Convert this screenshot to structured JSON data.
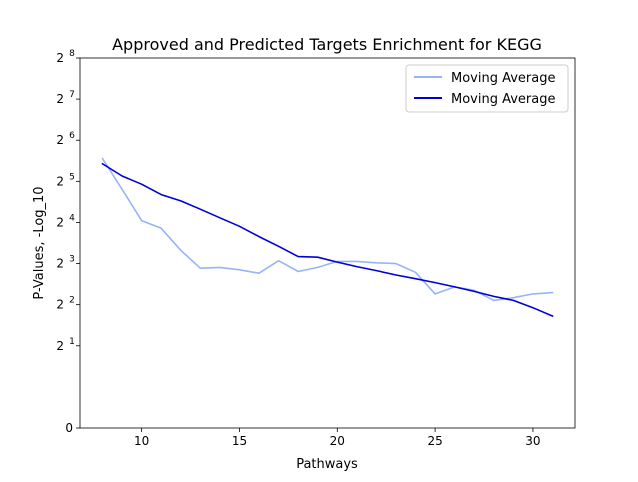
{
  "chart_data": {
    "type": "line",
    "title": "Approved and Predicted Targets Enrichment for KEGG",
    "xlabel": "Pathways",
    "ylabel": "P-Values, -Log_10",
    "xlim": [
      6.85,
      32.15
    ],
    "ylim_log2": [
      -1,
      8
    ],
    "y_scale": "log2",
    "x_ticks": [
      10,
      15,
      20,
      25,
      30
    ],
    "y_ticks": [
      {
        "base": "0",
        "exp": "",
        "log2": -1
      },
      {
        "base": "2",
        "exp": "1",
        "log2": 1
      },
      {
        "base": "2",
        "exp": "2",
        "log2": 2
      },
      {
        "base": "2",
        "exp": "3",
        "log2": 3
      },
      {
        "base": "2",
        "exp": "4",
        "log2": 4
      },
      {
        "base": "2",
        "exp": "5",
        "log2": 5
      },
      {
        "base": "2",
        "exp": "6",
        "log2": 6
      },
      {
        "base": "2",
        "exp": "7",
        "log2": 7
      },
      {
        "base": "2",
        "exp": "8",
        "log2": 8
      }
    ],
    "legend_position": "top-right",
    "grid": false,
    "series": [
      {
        "name": "Moving Average",
        "color": "#97b4f7",
        "x": [
          8,
          9,
          10,
          11,
          12,
          13,
          14,
          15,
          16,
          17,
          18,
          19,
          20,
          21,
          22,
          23,
          24,
          25,
          26,
          27,
          28,
          29,
          30,
          31
        ],
        "y": [
          47,
          28,
          16.5,
          14.5,
          10,
          7.4,
          7.5,
          7.2,
          6.8,
          8.4,
          7,
          7.5,
          8.3,
          8.3,
          8.1,
          8,
          6.9,
          4.8,
          5.4,
          5.1,
          4.3,
          4.5,
          4.8,
          4.9
        ]
      },
      {
        "name": "Moving Average",
        "color": "#0000d4",
        "x": [
          8,
          9,
          10,
          11,
          12,
          13,
          14,
          15,
          16,
          17,
          18,
          19,
          20,
          21,
          22,
          23,
          24,
          25,
          26,
          27,
          28,
          29,
          30,
          31
        ],
        "y": [
          43,
          35,
          30.5,
          25.6,
          23,
          20,
          17.3,
          15,
          12.6,
          10.7,
          9,
          8.9,
          8.2,
          7.6,
          7.1,
          6.6,
          6.2,
          5.8,
          5.4,
          5.0,
          4.6,
          4.3,
          3.8,
          3.3
        ]
      }
    ]
  }
}
